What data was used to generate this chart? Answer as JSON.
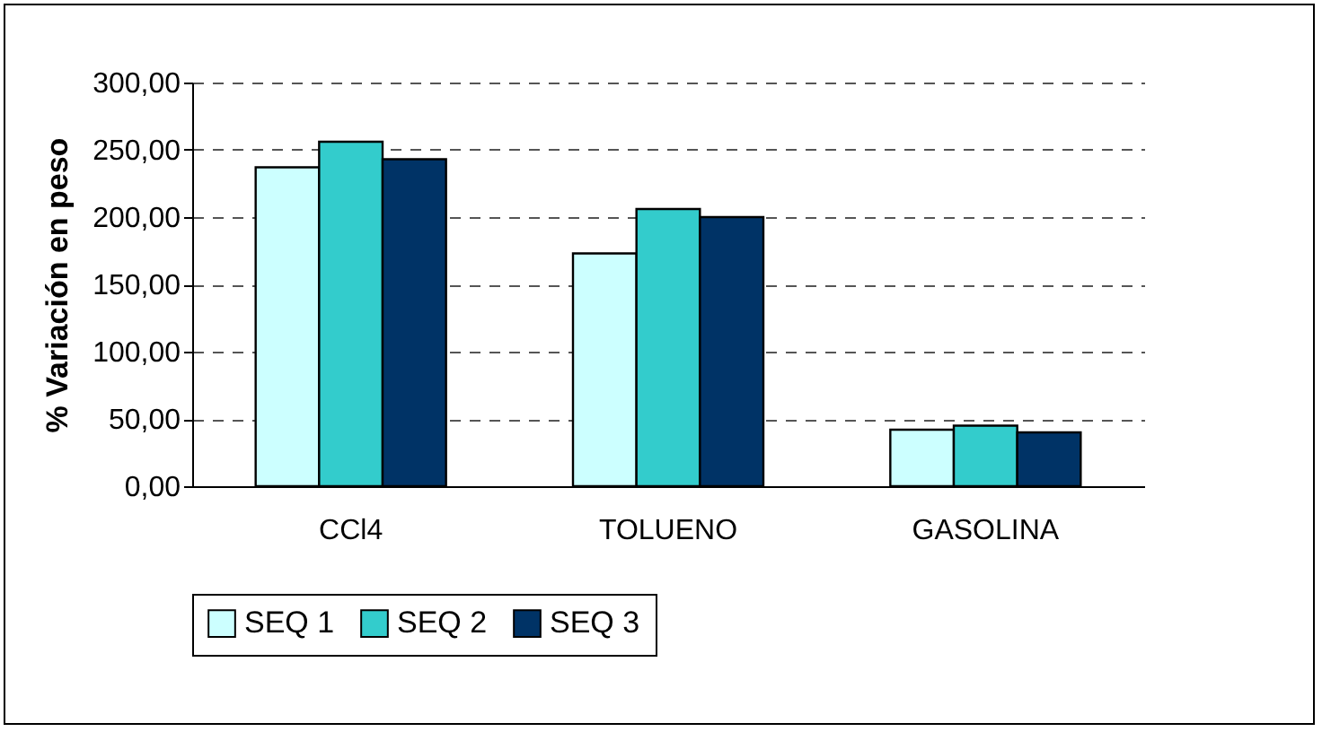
{
  "chart_data": {
    "type": "bar",
    "ylabel": "% Variación en peso",
    "categories": [
      "CCl4",
      "TOLUENO",
      "GASOLINA"
    ],
    "series": [
      {
        "name": "SEQ 1",
        "color": "#ccffff",
        "values": [
          237,
          173,
          42
        ]
      },
      {
        "name": "SEQ 2",
        "color": "#33cccc",
        "values": [
          256,
          206,
          45
        ]
      },
      {
        "name": "SEQ 3",
        "color": "#003366",
        "values": [
          243,
          200,
          40
        ]
      }
    ],
    "ylim": [
      0,
      300
    ],
    "yticks": [
      {
        "value": 0,
        "label": "0,00"
      },
      {
        "value": 50,
        "label": "50,00"
      },
      {
        "value": 100,
        "label": "100,00"
      },
      {
        "value": 150,
        "label": "150,00"
      },
      {
        "value": 200,
        "label": "200,00"
      },
      {
        "value": 250,
        "label": "250,00"
      },
      {
        "value": 300,
        "label": "300,00"
      }
    ],
    "grid": "y",
    "legend": "bottom"
  }
}
